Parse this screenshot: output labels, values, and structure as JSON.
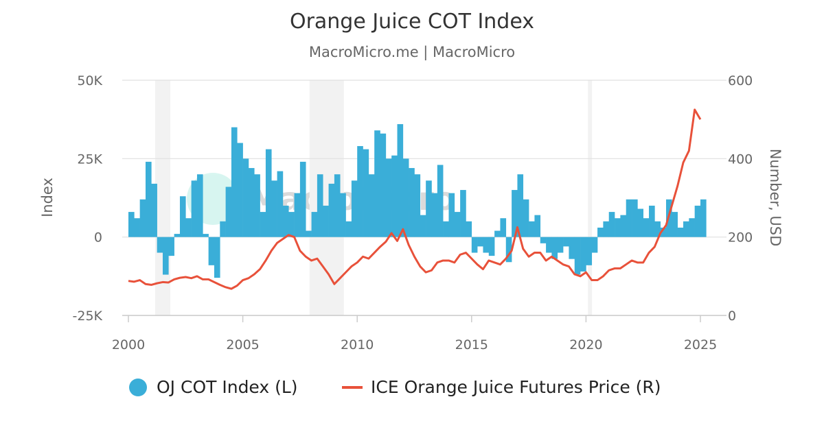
{
  "title": "Orange Juice COT Index",
  "subtitle": "MacroMicro.me | MacroMicro",
  "watermark": "MacroMicro",
  "colors": {
    "series_left": "#3aaed8",
    "series_right": "#e8513a",
    "recession": "#f2f2f2",
    "grid": "#e0e0e0"
  },
  "legend": [
    {
      "label": "OJ COT Index (L)",
      "color": "#3aaed8",
      "marker": "circle"
    },
    {
      "label": "ICE Orange Juice Futures Price (R)",
      "color": "#e8513a",
      "marker": "line"
    }
  ],
  "chart_data": {
    "type": "bar",
    "title": "Orange Juice COT Index",
    "subtitle": "MacroMicro.me | MacroMicro",
    "x_axis": {
      "ticks": [
        "2000",
        "2005",
        "2010",
        "2015",
        "2020",
        "2025"
      ],
      "range": [
        "2000-01",
        "2025-04"
      ]
    },
    "y_left": {
      "label": "Index",
      "range": [
        -25000,
        50000
      ],
      "ticks": [
        "-25K",
        "0",
        "25K",
        "50K"
      ],
      "tick_values": [
        -25000,
        0,
        25000,
        50000
      ]
    },
    "y_right": {
      "label": "Number, USD",
      "range": [
        0,
        600
      ],
      "ticks": [
        "0",
        "200",
        "400",
        "600"
      ],
      "tick_values": [
        0,
        200,
        400,
        600
      ]
    },
    "grid": true,
    "legend_position": "bottom",
    "shaded_periods": [
      {
        "start": "2001-03",
        "end": "2001-11"
      },
      {
        "start": "2007-12",
        "end": "2009-06"
      },
      {
        "start": "2020-02",
        "end": "2020-04"
      }
    ],
    "series": [
      {
        "name": "OJ COT Index (L)",
        "type": "bar",
        "axis": "left",
        "x": [
          "2000-01",
          "2000-04",
          "2000-07",
          "2000-10",
          "2001-01",
          "2001-04",
          "2001-07",
          "2001-10",
          "2002-01",
          "2002-04",
          "2002-07",
          "2002-10",
          "2003-01",
          "2003-04",
          "2003-07",
          "2003-10",
          "2004-01",
          "2004-04",
          "2004-07",
          "2004-10",
          "2005-01",
          "2005-04",
          "2005-07",
          "2005-10",
          "2006-01",
          "2006-04",
          "2006-07",
          "2006-10",
          "2007-01",
          "2007-04",
          "2007-07",
          "2007-10",
          "2008-01",
          "2008-04",
          "2008-07",
          "2008-10",
          "2009-01",
          "2009-04",
          "2009-07",
          "2009-10",
          "2010-01",
          "2010-04",
          "2010-07",
          "2010-10",
          "2011-01",
          "2011-04",
          "2011-07",
          "2011-10",
          "2012-01",
          "2012-04",
          "2012-07",
          "2012-10",
          "2013-01",
          "2013-04",
          "2013-07",
          "2013-10",
          "2014-01",
          "2014-04",
          "2014-07",
          "2014-10",
          "2015-01",
          "2015-04",
          "2015-07",
          "2015-10",
          "2016-01",
          "2016-04",
          "2016-07",
          "2016-10",
          "2017-01",
          "2017-04",
          "2017-07",
          "2017-10",
          "2018-01",
          "2018-04",
          "2018-07",
          "2018-10",
          "2019-01",
          "2019-04",
          "2019-07",
          "2019-10",
          "2020-01",
          "2020-04",
          "2020-07",
          "2020-10",
          "2021-01",
          "2021-04",
          "2021-07",
          "2021-10",
          "2022-01",
          "2022-04",
          "2022-07",
          "2022-10",
          "2023-01",
          "2023-04",
          "2023-07",
          "2023-10",
          "2024-01",
          "2024-04",
          "2024-07",
          "2024-10",
          "2025-01"
        ],
        "values": [
          8000,
          6000,
          12000,
          24000,
          17000,
          -5000,
          -12000,
          -6000,
          1000,
          13000,
          6000,
          18000,
          20000,
          1000,
          -9000,
          -13000,
          5000,
          16000,
          35000,
          30000,
          25000,
          22000,
          20000,
          8000,
          28000,
          18000,
          21000,
          10000,
          8000,
          14000,
          24000,
          2000,
          8000,
          20000,
          10000,
          17000,
          20000,
          14000,
          5000,
          18000,
          29000,
          28000,
          20000,
          34000,
          33000,
          25000,
          26000,
          36000,
          25000,
          22000,
          20000,
          7000,
          18000,
          14000,
          23000,
          5000,
          14000,
          8000,
          15000,
          5000,
          -5000,
          -3000,
          -5000,
          -6000,
          2000,
          6000,
          -8000,
          15000,
          20000,
          12000,
          5000,
          7000,
          -2000,
          -5000,
          -7000,
          -5000,
          -3000,
          -7000,
          -12000,
          -11000,
          -9000,
          -5000,
          3000,
          5000,
          8000,
          6000,
          7000,
          12000,
          12000,
          9000,
          6000,
          10000,
          5000,
          3000,
          12000,
          8000,
          3000,
          5000,
          6000,
          10000,
          12000
        ]
      },
      {
        "name": "ICE Orange Juice Futures Price (R)",
        "type": "line",
        "axis": "right",
        "x": [
          "2000-01",
          "2000-04",
          "2000-07",
          "2000-10",
          "2001-01",
          "2001-04",
          "2001-07",
          "2001-10",
          "2002-01",
          "2002-04",
          "2002-07",
          "2002-10",
          "2003-01",
          "2003-04",
          "2003-07",
          "2003-10",
          "2004-01",
          "2004-04",
          "2004-07",
          "2004-10",
          "2005-01",
          "2005-04",
          "2005-07",
          "2005-10",
          "2006-01",
          "2006-04",
          "2006-07",
          "2006-10",
          "2007-01",
          "2007-04",
          "2007-07",
          "2007-10",
          "2008-01",
          "2008-04",
          "2008-07",
          "2008-10",
          "2009-01",
          "2009-04",
          "2009-07",
          "2009-10",
          "2010-01",
          "2010-04",
          "2010-07",
          "2010-10",
          "2011-01",
          "2011-04",
          "2011-07",
          "2011-10",
          "2012-01",
          "2012-04",
          "2012-07",
          "2012-10",
          "2013-01",
          "2013-04",
          "2013-07",
          "2013-10",
          "2014-01",
          "2014-04",
          "2014-07",
          "2014-10",
          "2015-01",
          "2015-04",
          "2015-07",
          "2015-10",
          "2016-01",
          "2016-04",
          "2016-07",
          "2016-10",
          "2017-01",
          "2017-04",
          "2017-07",
          "2017-10",
          "2018-01",
          "2018-04",
          "2018-07",
          "2018-10",
          "2019-01",
          "2019-04",
          "2019-07",
          "2019-10",
          "2020-01",
          "2020-04",
          "2020-07",
          "2020-10",
          "2021-01",
          "2021-04",
          "2021-07",
          "2021-10",
          "2022-01",
          "2022-04",
          "2022-07",
          "2022-10",
          "2023-01",
          "2023-04",
          "2023-07",
          "2023-10",
          "2024-01",
          "2024-04",
          "2024-07",
          "2024-10",
          "2025-01"
        ],
        "values": [
          88,
          86,
          90,
          80,
          78,
          82,
          85,
          84,
          92,
          96,
          98,
          95,
          100,
          92,
          92,
          85,
          78,
          72,
          68,
          76,
          90,
          95,
          105,
          118,
          140,
          165,
          185,
          195,
          205,
          200,
          165,
          150,
          140,
          145,
          125,
          105,
          80,
          95,
          110,
          125,
          135,
          150,
          145,
          160,
          175,
          188,
          210,
          190,
          220,
          180,
          150,
          125,
          110,
          115,
          135,
          140,
          140,
          135,
          155,
          160,
          145,
          130,
          118,
          140,
          135,
          130,
          145,
          165,
          225,
          170,
          150,
          160,
          160,
          140,
          150,
          140,
          130,
          125,
          105,
          100,
          110,
          90,
          90,
          100,
          115,
          120,
          120,
          130,
          140,
          135,
          135,
          160,
          175,
          210,
          230,
          280,
          330,
          390,
          420,
          525,
          500
        ]
      }
    ]
  }
}
